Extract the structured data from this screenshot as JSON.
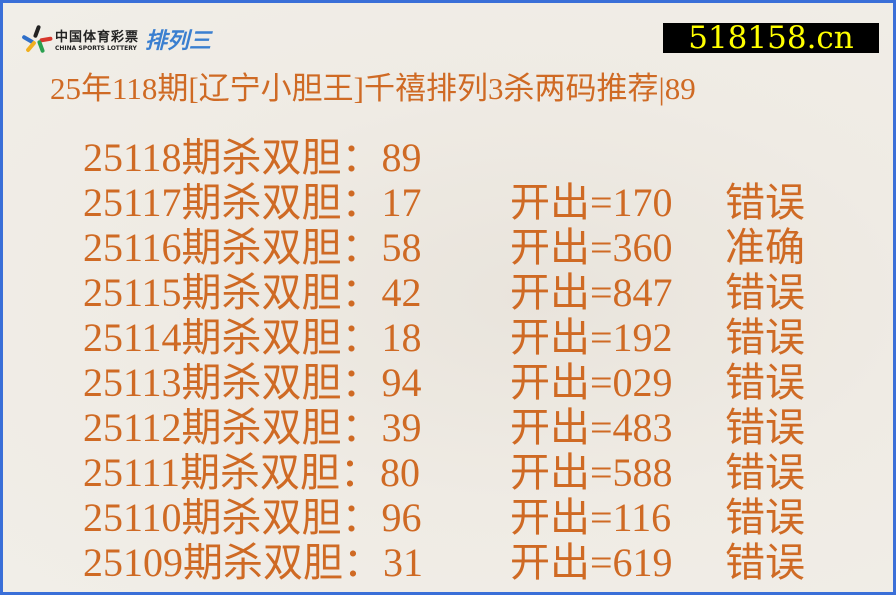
{
  "logo": {
    "cn": "中国体育彩票",
    "en": "CHINA SPORTS LOTTERY",
    "game": "排列三"
  },
  "site": "518158.cn",
  "title": "25年118期[辽宁小胆王]千禧排列3杀两码推荐|89",
  "colors": {
    "text": "#cf6a24",
    "border": "#3a6fd8",
    "site_bg": "#000000",
    "site_text": "#ffff00"
  },
  "rows": [
    {
      "label": "25118期杀双胆：89",
      "draw": "",
      "result": ""
    },
    {
      "label": "25117期杀双胆：17",
      "draw": "开出=170",
      "result": "错误"
    },
    {
      "label": "25116期杀双胆：58",
      "draw": "开出=360",
      "result": "准确"
    },
    {
      "label": "25115期杀双胆：42",
      "draw": "开出=847",
      "result": "错误"
    },
    {
      "label": "25114期杀双胆：18",
      "draw": "开出=192",
      "result": "错误"
    },
    {
      "label": "25113期杀双胆：94",
      "draw": "开出=029",
      "result": "错误"
    },
    {
      "label": "25112期杀双胆：39",
      "draw": "开出=483",
      "result": "错误"
    },
    {
      "label": "25111期杀双胆：80",
      "draw": "开出=588",
      "result": "错误"
    },
    {
      "label": "25110期杀双胆：96",
      "draw": "开出=116",
      "result": "错误"
    },
    {
      "label": "25109期杀双胆：31",
      "draw": "开出=619",
      "result": "错误"
    }
  ]
}
